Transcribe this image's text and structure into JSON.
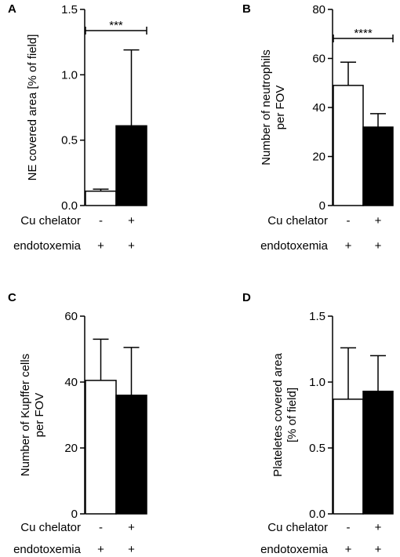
{
  "chart_data": [
    {
      "type": "bar",
      "panel": "A",
      "ylabel": "NE covered area [% of field]",
      "ylim": [
        0,
        1.5
      ],
      "yticks": [
        "0.0",
        "0.5",
        "1.0",
        "1.5"
      ],
      "series": [
        {
          "values": [
            0.11,
            0.61
          ],
          "errors": [
            0.015,
            0.58
          ]
        }
      ],
      "fills": [
        "#ffffff",
        "#000000"
      ],
      "significance": "***",
      "rows": [
        {
          "label": "Cu chelator",
          "values": [
            "-",
            "+"
          ]
        },
        {
          "label": "endotoxemia",
          "values": [
            "+",
            "+"
          ]
        }
      ]
    },
    {
      "type": "bar",
      "panel": "B",
      "ylabel": [
        "Number of neutrophils",
        "per FOV"
      ],
      "ylim": [
        0,
        80
      ],
      "yticks": [
        "0",
        "20",
        "40",
        "60",
        "80"
      ],
      "series": [
        {
          "values": [
            49,
            32
          ],
          "errors": [
            9.5,
            5.5
          ]
        }
      ],
      "fills": [
        "#ffffff",
        "#000000"
      ],
      "significance": "****",
      "rows": [
        {
          "label": "Cu chelator",
          "values": [
            "-",
            "+"
          ]
        },
        {
          "label": "endotoxemia",
          "values": [
            "+",
            "+"
          ]
        }
      ]
    },
    {
      "type": "bar",
      "panel": "C",
      "ylabel": [
        "Number of Kupffer cells",
        "per FOV"
      ],
      "ylim": [
        0,
        60
      ],
      "yticks": [
        "0",
        "20",
        "40",
        "60"
      ],
      "series": [
        {
          "values": [
            40.5,
            36
          ],
          "errors": [
            12.5,
            14.5
          ]
        }
      ],
      "fills": [
        "#ffffff",
        "#000000"
      ],
      "significance": "",
      "rows": [
        {
          "label": "Cu chelator",
          "values": [
            "-",
            "+"
          ]
        },
        {
          "label": "endotoxemia",
          "values": [
            "+",
            "+"
          ]
        }
      ]
    },
    {
      "type": "bar",
      "panel": "D",
      "ylabel": [
        "Plateletes covered area",
        "[% of field]"
      ],
      "ylim": [
        0,
        1.5
      ],
      "yticks": [
        "0.0",
        "0.5",
        "1.0",
        "1.5"
      ],
      "series": [
        {
          "values": [
            0.87,
            0.93
          ],
          "errors": [
            0.39,
            0.27
          ]
        }
      ],
      "fills": [
        "#ffffff",
        "#000000"
      ],
      "significance": "",
      "rows": [
        {
          "label": "Cu chelator",
          "values": [
            "-",
            "+"
          ]
        },
        {
          "label": "endotoxemia",
          "values": [
            "+",
            "+"
          ]
        }
      ]
    }
  ]
}
